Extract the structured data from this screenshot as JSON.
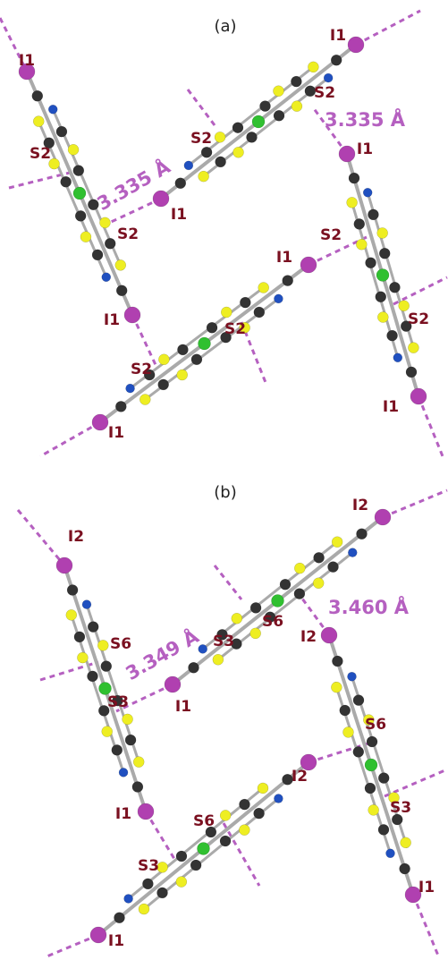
{
  "panels": [
    {
      "label": "(a)",
      "atoms": [
        "I1",
        "S2",
        "I1",
        "S2",
        "I1",
        "S2",
        "I1",
        "S2",
        "I1",
        "S2",
        "I1",
        "S2",
        "S2",
        "I1",
        "S2",
        "I1"
      ],
      "distances": [
        "3.335 Å",
        "3.335 Å"
      ]
    },
    {
      "label": "(b)",
      "atoms": [
        "I2",
        "S6",
        "I1",
        "S3",
        "I1",
        "S3",
        "S6",
        "I2",
        "I2",
        "S6",
        "I2",
        "S3",
        "I1",
        "S6",
        "S3",
        "I1"
      ],
      "distances": [
        "3.349 Å",
        "3.460 Å"
      ]
    }
  ]
}
